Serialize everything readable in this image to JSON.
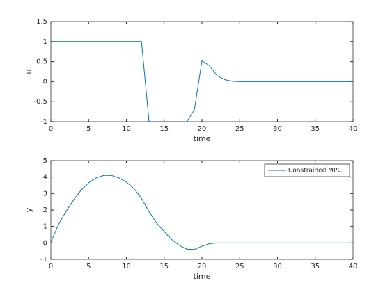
{
  "chart_data": [
    {
      "type": "line",
      "xlabel": "time",
      "ylabel": "u",
      "color": "#0072bd",
      "x": [
        0,
        1,
        2,
        3,
        4,
        5,
        6,
        7,
        8,
        9,
        10,
        11,
        12,
        13,
        14,
        15,
        16,
        17,
        18,
        19,
        20,
        21,
        22,
        23,
        24,
        25,
        26,
        27,
        28,
        29,
        30,
        31,
        32,
        33,
        34,
        35,
        36,
        37,
        38,
        39,
        40
      ],
      "values": [
        1,
        1,
        1,
        1,
        1,
        1,
        1,
        1,
        1,
        1,
        1,
        1,
        1,
        -1,
        -1,
        -1,
        -1,
        -1,
        -1,
        -0.7,
        0.52,
        0.4,
        0.15,
        0.05,
        0.01,
        0,
        0,
        0,
        0,
        0,
        0,
        0,
        0,
        0,
        0,
        0,
        0,
        0,
        0,
        0,
        0
      ],
      "xlim": [
        0,
        40
      ],
      "xticks": [
        0,
        5,
        10,
        15,
        20,
        25,
        30,
        35,
        40
      ],
      "ylim": [
        -1,
        1.5
      ],
      "yticks": [
        -1,
        -0.5,
        0,
        0.5,
        1,
        1.5
      ]
    },
    {
      "type": "line",
      "xlabel": "time",
      "ylabel": "y",
      "legend": "top-right",
      "x": [
        0,
        1,
        2,
        3,
        4,
        5,
        6,
        7,
        8,
        9,
        10,
        11,
        12,
        13,
        14,
        15,
        16,
        17,
        18,
        19,
        20,
        21,
        22,
        23,
        24,
        25,
        26,
        27,
        28,
        29,
        30,
        31,
        32,
        33,
        34,
        35,
        36,
        37,
        38,
        39,
        40
      ],
      "series": [
        {
          "name": "Constrained MPC",
          "color": "#0072bd",
          "values": [
            0.05,
            1.1,
            1.9,
            2.6,
            3.2,
            3.65,
            3.95,
            4.1,
            4.1,
            3.95,
            3.7,
            3.3,
            2.7,
            1.9,
            1.2,
            0.7,
            0.2,
            -0.15,
            -0.38,
            -0.4,
            -0.2,
            -0.05,
            0,
            0,
            0,
            0,
            0,
            0,
            0,
            0,
            0,
            0,
            0,
            0,
            0,
            0,
            0,
            0,
            0,
            0,
            0
          ]
        }
      ],
      "xlim": [
        0,
        40
      ],
      "xticks": [
        0,
        5,
        10,
        15,
        20,
        25,
        30,
        35,
        40
      ],
      "ylim": [
        -1,
        5
      ],
      "yticks": [
        -1,
        0,
        1,
        2,
        3,
        4,
        5
      ]
    }
  ]
}
